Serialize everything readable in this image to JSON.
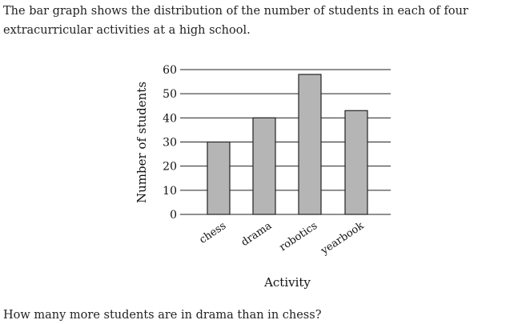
{
  "intro_text": "The bar graph shows the distribution of the number of students in each of four extracurricular activities at a high school.",
  "question_text": "How many more students are in drama than in chess?",
  "colors": {
    "bar_fill": "#b5b5b5",
    "bar_stroke": "#222222",
    "grid": "#222222"
  },
  "chart_data": {
    "type": "bar",
    "categories": [
      "chess",
      "drama",
      "robotics",
      "yearbook"
    ],
    "values": [
      30,
      40,
      58,
      43
    ],
    "title": "",
    "xlabel": "Activity",
    "ylabel": "Number of students",
    "ylim": [
      0,
      60
    ],
    "yticks": [
      0,
      10,
      20,
      30,
      40,
      50,
      60
    ],
    "grid": true,
    "legend": "none"
  }
}
